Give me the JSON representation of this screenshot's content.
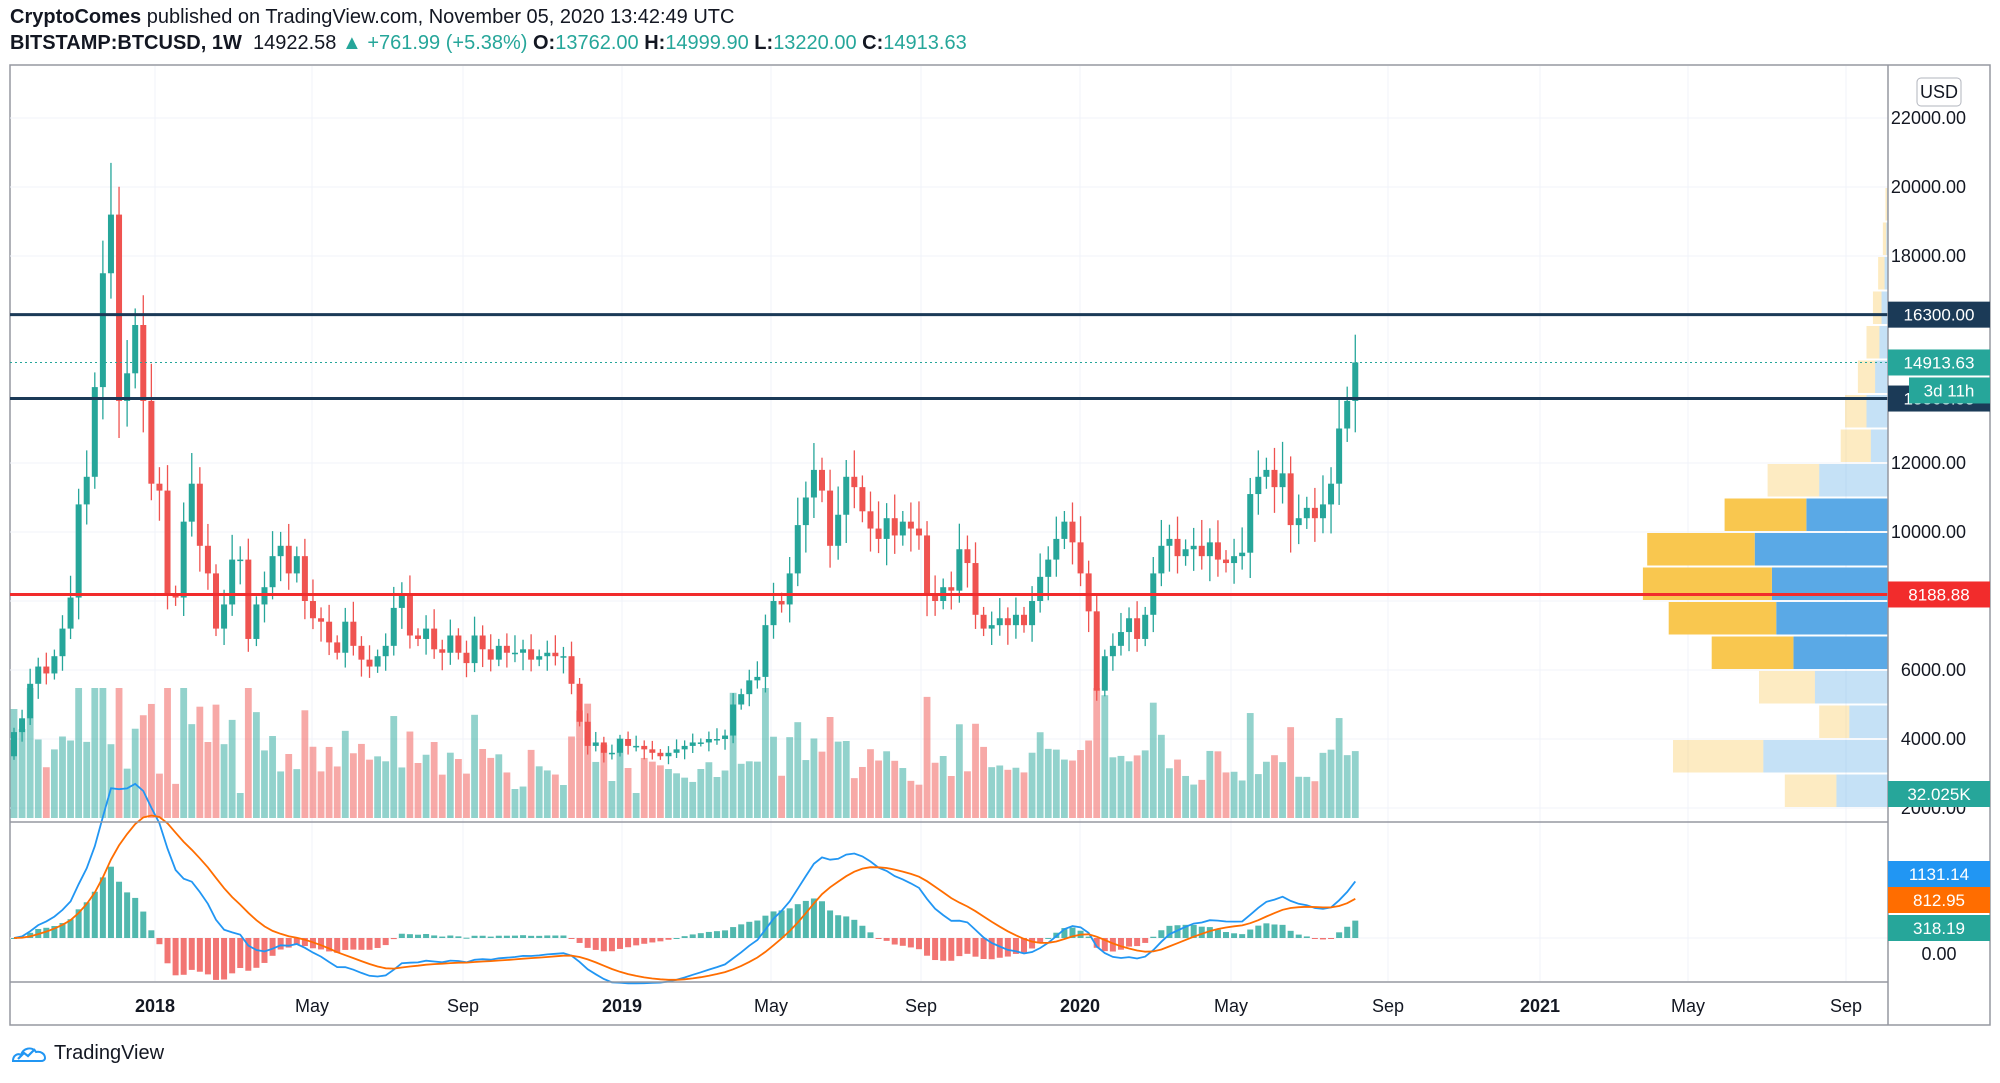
{
  "header": {
    "author": "CryptoComes",
    "published_text": "published on TradingView.com, November 05, 2020 13:42:49 UTC",
    "symbol": "BITSTAMP:BTCUSD",
    "interval": "1W",
    "last": "14922.58",
    "change": "▲ +761.99 (+5.38%)",
    "open_label": "O:",
    "open": "13762.00",
    "high_label": "H:",
    "high": "14999.90",
    "low_label": "L:",
    "low": "13220.00",
    "close_label": "C:",
    "close": "14913.63"
  },
  "currency_button": "USD",
  "brand": "TradingView",
  "colors": {
    "up": "#26a69a",
    "down": "#ef5350",
    "level": "#1b3a57",
    "support": "#f22c2c",
    "macd": "#2196f3",
    "signal": "#ff6d00",
    "vp_buy": "#f9c74f",
    "vp_sell": "#5aa9e6"
  },
  "chart_data": [
    {
      "type": "candlestick",
      "symbol": "BITSTAMP:BTCUSD",
      "interval": "1W",
      "currency": "USD",
      "ylim": [
        1600,
        23000
      ],
      "y_ticks": [
        2000,
        4000,
        6000,
        8000,
        10000,
        12000,
        18000,
        20000,
        22000
      ],
      "y_tick_labels": [
        "2000.00",
        "4000.00",
        "6000.00",
        "8000.00",
        "10000.00",
        "12000.00",
        "18000.00",
        "20000.00",
        "22000.00"
      ],
      "x_tick_labels": [
        "2018",
        "May",
        "Sep",
        "2019",
        "May",
        "Sep",
        "2020",
        "May",
        "Sep",
        "2021",
        "May",
        "Sep"
      ],
      "closes_weekly_approx": [
        4200,
        4600,
        5600,
        6100,
        5900,
        6400,
        7200,
        8100,
        10800,
        11600,
        14200,
        17500,
        19200,
        13800,
        14600,
        16000,
        13800,
        11400,
        11200,
        8200,
        8100,
        10300,
        11400,
        9600,
        8800,
        7200,
        7900,
        9200,
        9200,
        6900,
        7900,
        8400,
        9300,
        9600,
        8800,
        9300,
        8000,
        7500,
        7400,
        6800,
        6500,
        7400,
        6700,
        6300,
        6100,
        6400,
        6700,
        7800,
        8200,
        7000,
        6900,
        7200,
        6600,
        6500,
        7000,
        6500,
        6200,
        7000,
        6600,
        6300,
        6700,
        6500,
        6500,
        6600,
        6300,
        6400,
        6500,
        6400,
        6400,
        5600,
        4500,
        3800,
        3900,
        3600,
        3600,
        4000,
        3800,
        3800,
        3700,
        3600,
        3500,
        3600,
        3700,
        3800,
        3900,
        3900,
        4000,
        4000,
        4100,
        5000,
        5300,
        5700,
        5800,
        7300,
        8000,
        7900,
        8800,
        10200,
        11000,
        11800,
        11200,
        9600,
        10500,
        11600,
        11300,
        10600,
        10100,
        9800,
        10400,
        9900,
        10300,
        10100,
        9900,
        8200,
        8000,
        8400,
        8300,
        9500,
        9100,
        7600,
        7200,
        7300,
        7500,
        7300,
        7600,
        7300,
        8000,
        8700,
        9200,
        9800,
        10300,
        9700,
        8800,
        7700,
        5400,
        6400,
        6700,
        7100,
        7500,
        6900,
        7600,
        8800,
        9600,
        9800,
        9300,
        9500,
        9600,
        9300,
        9700,
        9200,
        9100,
        9300,
        9400,
        11100,
        11600,
        11800,
        11300,
        11700,
        10200,
        10400,
        10700,
        10400,
        10800,
        11400,
        13000,
        13800,
        14914
      ],
      "volume_last_k": 32.025
    },
    {
      "type": "line",
      "title": "Horizontal levels",
      "levels": [
        16300.0,
        13868.53,
        8188.88
      ],
      "level_labels": [
        "16300.00",
        "13868.53",
        "8188.88"
      ],
      "last_price_label": "14913.63",
      "countdown_label": "3d 11h"
    },
    {
      "type": "bar",
      "title": "Volume profile",
      "price_bins": [
        [
          2000,
          3000
        ],
        [
          3000,
          4000
        ],
        [
          4000,
          5000
        ],
        [
          5000,
          6000
        ],
        [
          6000,
          7000
        ],
        [
          7000,
          8000
        ],
        [
          8000,
          9000
        ],
        [
          9000,
          10000
        ],
        [
          10000,
          11000
        ],
        [
          11000,
          12000
        ],
        [
          12000,
          13000
        ],
        [
          13000,
          14000
        ],
        [
          14000,
          15000
        ],
        [
          15000,
          16000
        ],
        [
          16000,
          17000
        ],
        [
          17000,
          18000
        ],
        [
          18000,
          19000
        ],
        [
          19000,
          20000
        ]
      ],
      "buy_volume_rel": [
        0.12,
        0.21,
        0.07,
        0.13,
        0.19,
        0.25,
        0.3,
        0.25,
        0.19,
        0.12,
        0.07,
        0.05,
        0.04,
        0.03,
        0.02,
        0.015,
        0.008,
        0.004
      ],
      "sell_volume_rel": [
        0.12,
        0.29,
        0.09,
        0.17,
        0.22,
        0.26,
        0.27,
        0.31,
        0.19,
        0.16,
        0.04,
        0.05,
        0.03,
        0.02,
        0.015,
        0.008,
        0.004,
        0.002
      ]
    },
    {
      "type": "line",
      "title": "MACD",
      "series": [
        {
          "name": "MACD",
          "last": 1131.14
        },
        {
          "name": "Signal",
          "last": 812.95
        },
        {
          "name": "Histogram",
          "last": 318.19
        }
      ],
      "value_labels": [
        "1131.14",
        "812.95",
        "318.19",
        "0.00"
      ]
    }
  ]
}
